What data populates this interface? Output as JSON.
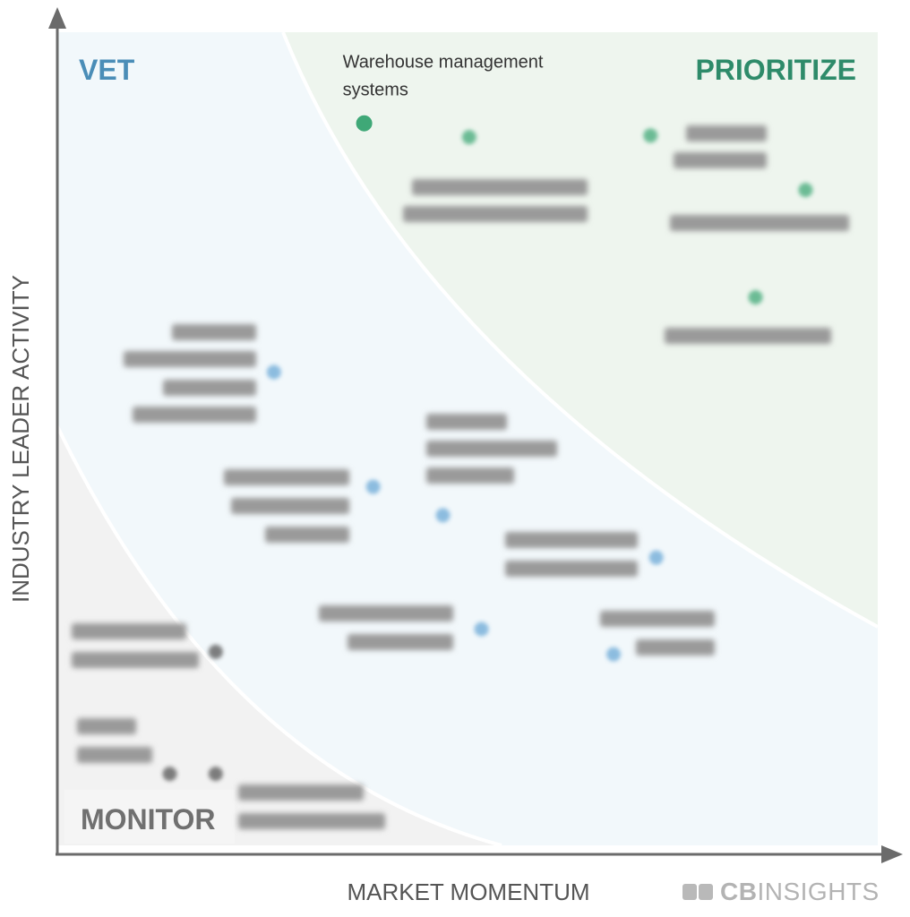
{
  "chart_data": {
    "type": "scatter",
    "title": "",
    "xlabel": "MARKET MOMENTUM",
    "ylabel": "INDUSTRY LEADER ACTIVITY",
    "xlim": [
      0,
      100
    ],
    "ylim": [
      0,
      100
    ],
    "grid": false,
    "quadrants": [
      {
        "name": "VET",
        "color": "#4a8db7"
      },
      {
        "name": "PRIORITIZE",
        "color": "#2e8b6a"
      },
      {
        "name": "MONITOR",
        "color": "#707070"
      }
    ],
    "points": [
      {
        "label": "Warehouse management systems",
        "x": 37.4,
        "y": 88.8,
        "quadrant": "PRIORITIZE",
        "highlighted": true
      },
      {
        "label": "",
        "x": 50.2,
        "y": 87.1,
        "quadrant": "PRIORITIZE",
        "highlighted": false
      },
      {
        "label": "",
        "x": 72.3,
        "y": 87.3,
        "quadrant": "PRIORITIZE",
        "highlighted": false
      },
      {
        "label": "",
        "x": 91.2,
        "y": 80.6,
        "quadrant": "PRIORITIZE",
        "highlighted": false
      },
      {
        "label": "",
        "x": 85.1,
        "y": 67.4,
        "quadrant": "PRIORITIZE",
        "highlighted": false
      },
      {
        "label": "",
        "x": 26.4,
        "y": 58.2,
        "quadrant": "VET",
        "highlighted": false
      },
      {
        "label": "",
        "x": 38.5,
        "y": 44.1,
        "quadrant": "VET",
        "highlighted": false
      },
      {
        "label": "",
        "x": 47.0,
        "y": 40.6,
        "quadrant": "VET",
        "highlighted": false
      },
      {
        "label": "",
        "x": 73.0,
        "y": 35.4,
        "quadrant": "VET",
        "highlighted": false
      },
      {
        "label": "",
        "x": 51.7,
        "y": 26.6,
        "quadrant": "VET",
        "highlighted": false
      },
      {
        "label": "",
        "x": 67.8,
        "y": 23.5,
        "quadrant": "VET",
        "highlighted": false
      },
      {
        "label": "",
        "x": 19.3,
        "y": 23.8,
        "quadrant": "MONITOR",
        "highlighted": false
      },
      {
        "label": "",
        "x": 13.7,
        "y": 8.8,
        "quadrant": "MONITOR",
        "highlighted": false
      },
      {
        "label": "",
        "x": 19.3,
        "y": 8.8,
        "quadrant": "MONITOR",
        "highlighted": false
      }
    ],
    "point_colors": {
      "PRIORITIZE": "#3fa877",
      "VET": "#6aa8d6",
      "MONITOR": "#555555"
    }
  },
  "brand": {
    "prefix": "CB",
    "suffix": "INSIGHTS",
    "icon": "cb-insights-logo-icon"
  }
}
